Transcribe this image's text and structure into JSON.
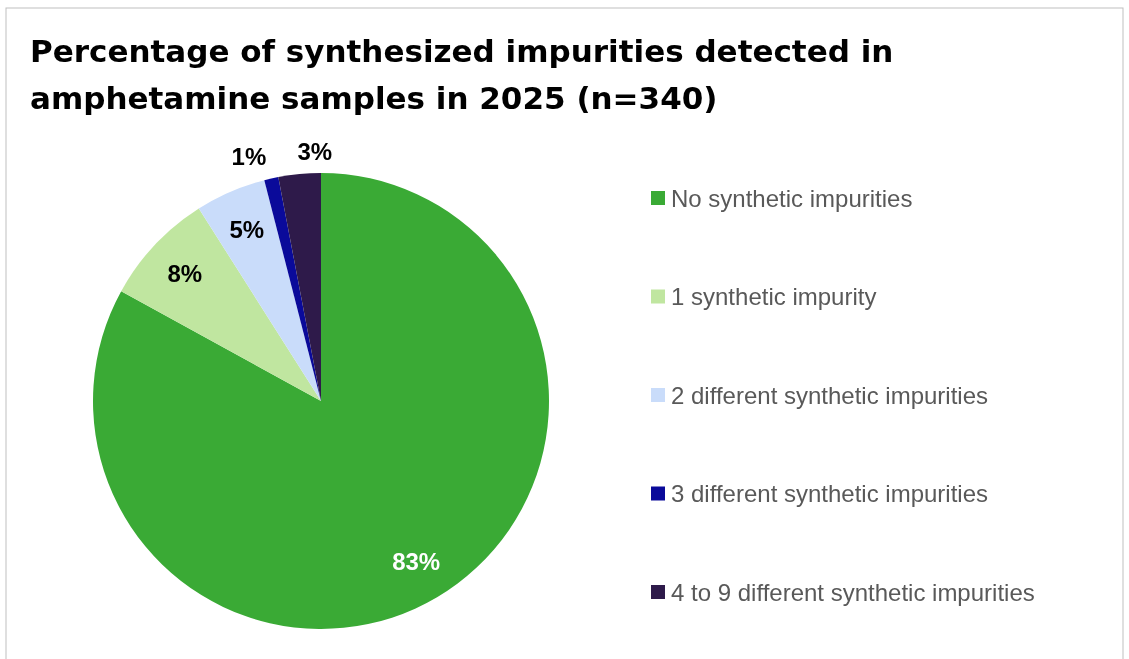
{
  "chart_data": {
    "type": "pie",
    "title": "Percentage of synthesized impurities detected in amphetamine samples in 2025 (n=340)",
    "categories": [
      "No synthetic impurities",
      "1 synthetic impurity",
      "2 different synthetic impurities",
      "3 different synthetic impurities",
      "4 to 9 different synthetic impurities"
    ],
    "values": [
      83,
      8,
      5,
      1,
      3
    ],
    "colors": [
      "#3aaa35",
      "#c0e6a0",
      "#c9dcfa",
      "#0a0a9a",
      "#2e1a4a"
    ],
    "value_labels": [
      "83%",
      "8%",
      "5%",
      "1%",
      "3%"
    ],
    "legend": "right"
  }
}
